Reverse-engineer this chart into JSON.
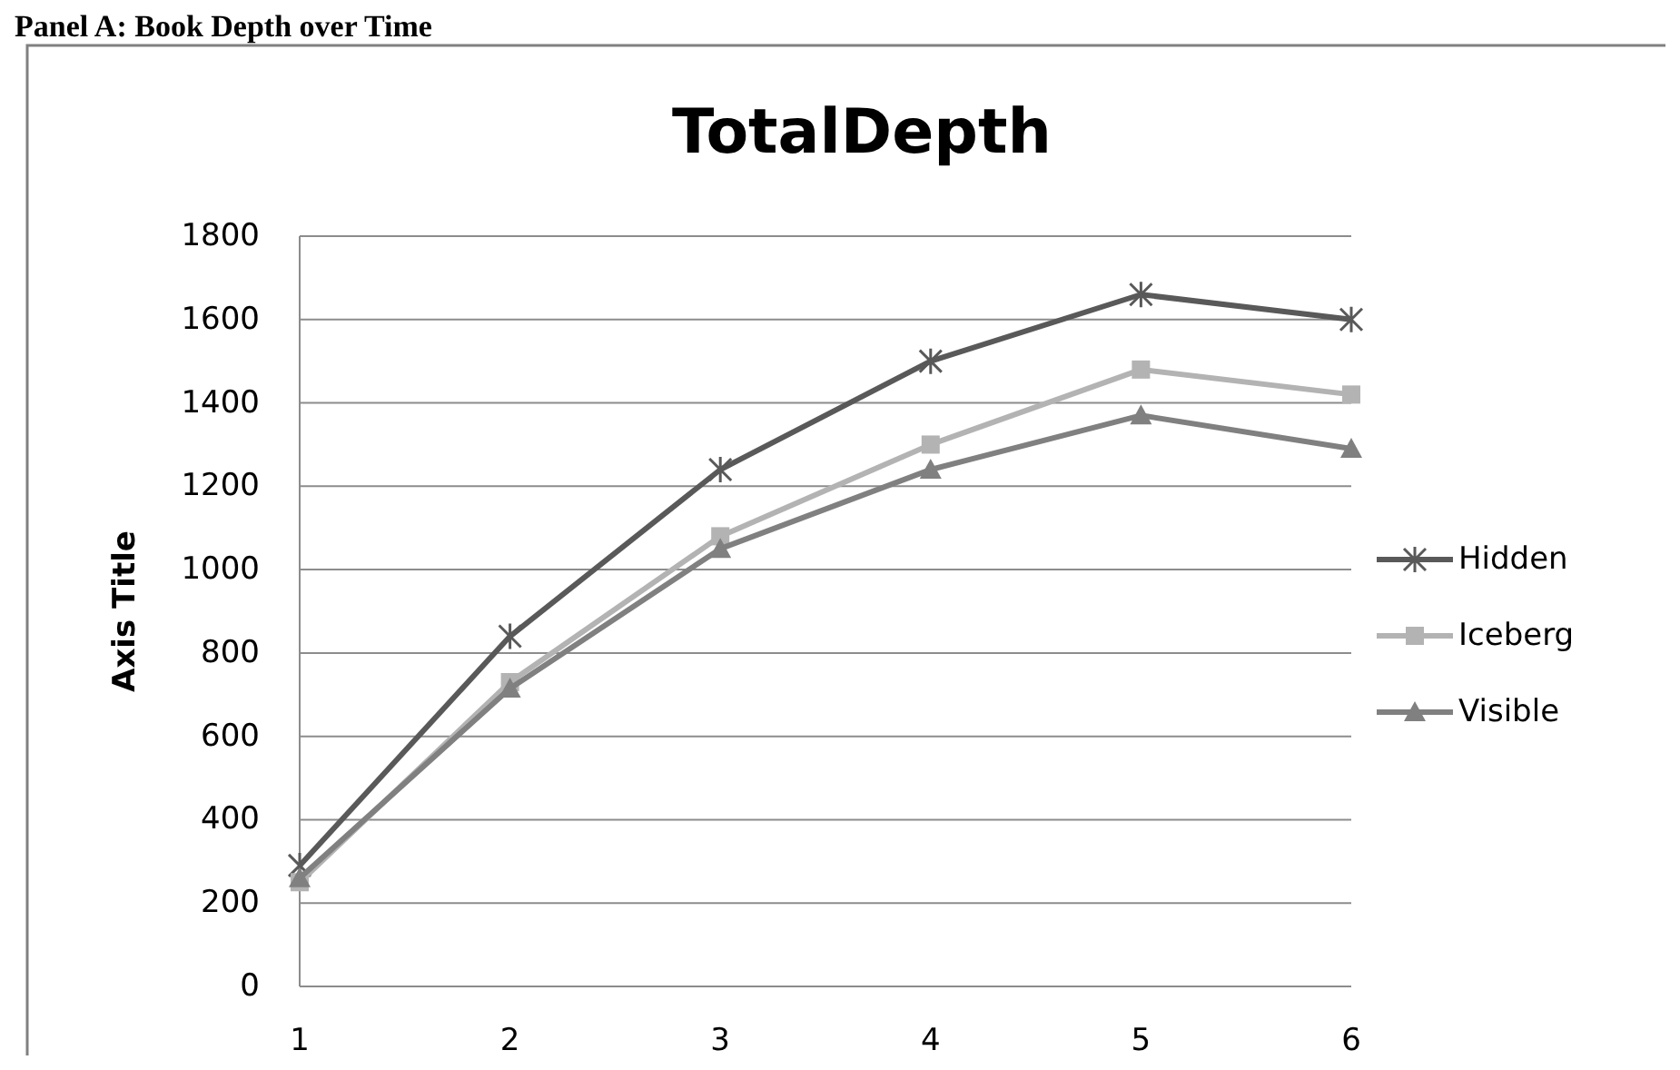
{
  "chart_data": {
    "type": "line",
    "title": "TotalDepth",
    "subtitle": "Panel A: Book Depth over Time",
    "ylabel": "Axis Title",
    "x": [
      1,
      2,
      3,
      4,
      5,
      6
    ],
    "xlim": [
      1,
      6
    ],
    "xticks": [
      1,
      2,
      3,
      4,
      5,
      6
    ],
    "ylim": [
      0,
      1800
    ],
    "yticks": [
      0,
      200,
      400,
      600,
      800,
      1000,
      1200,
      1400,
      1600,
      1800
    ],
    "grid": "y",
    "legend": "right",
    "line_style": "solid",
    "series": [
      {
        "name": "Hidden",
        "color": "#595959",
        "marker": "cross",
        "values": [
          290,
          840,
          1240,
          1500,
          1660,
          1600
        ]
      },
      {
        "name": "Iceberg",
        "color": "#b3b3b3",
        "marker": "square",
        "values": [
          250,
          730,
          1080,
          1300,
          1480,
          1420
        ]
      },
      {
        "name": "Visible",
        "color": "#808080",
        "marker": "triangle",
        "values": [
          260,
          715,
          1050,
          1240,
          1370,
          1290
        ]
      }
    ]
  }
}
